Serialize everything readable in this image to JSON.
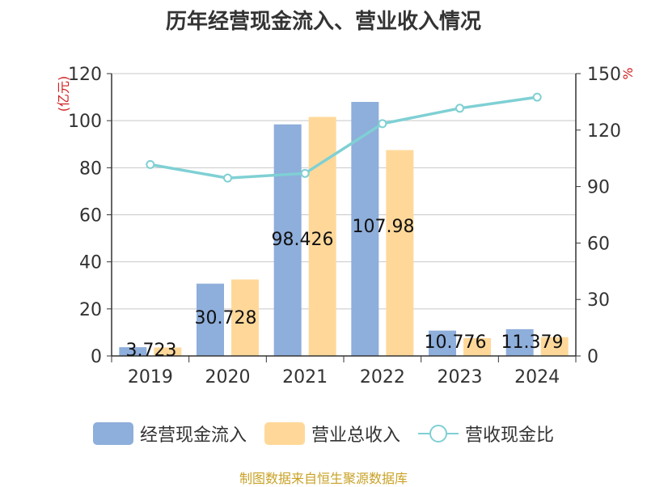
{
  "chart_data": {
    "type": "bar",
    "title": "历年经营现金流入、营业收入情况",
    "categories": [
      "2019",
      "2020",
      "2021",
      "2022",
      "2023",
      "2024"
    ],
    "y_left_unit": "(亿元)",
    "y_right_unit": "%",
    "y_left_ticks": [
      "0",
      "20",
      "40",
      "60",
      "80",
      "100",
      "120"
    ],
    "y_right_ticks": [
      "0",
      "30",
      "60",
      "90",
      "120",
      "150"
    ],
    "ylim_left": [
      0,
      120
    ],
    "ylim_right": [
      0,
      150
    ],
    "grid": true,
    "legend_position": "bottom",
    "series": [
      {
        "name": "经营现金流入",
        "type": "bar",
        "axis": "left",
        "color": "#8eaedb",
        "values": [
          3.723,
          30.728,
          98.426,
          107.98,
          10.776,
          11.379
        ],
        "labels": [
          "3.723",
          "30.728",
          "98.426",
          "107.98",
          "10.776",
          "11.379"
        ]
      },
      {
        "name": "营业总收入",
        "type": "bar",
        "axis": "left",
        "color": "#ffd899",
        "values": [
          3.6,
          32.5,
          101.6,
          87.5,
          7.6,
          8.0
        ]
      },
      {
        "name": "营收现金比",
        "type": "line",
        "axis": "right",
        "color": "#7fd0d4",
        "values": [
          101.7,
          94.5,
          97.0,
          123.4,
          131.6,
          137.5
        ]
      }
    ],
    "source": "制图数据来自恒生聚源数据库"
  }
}
